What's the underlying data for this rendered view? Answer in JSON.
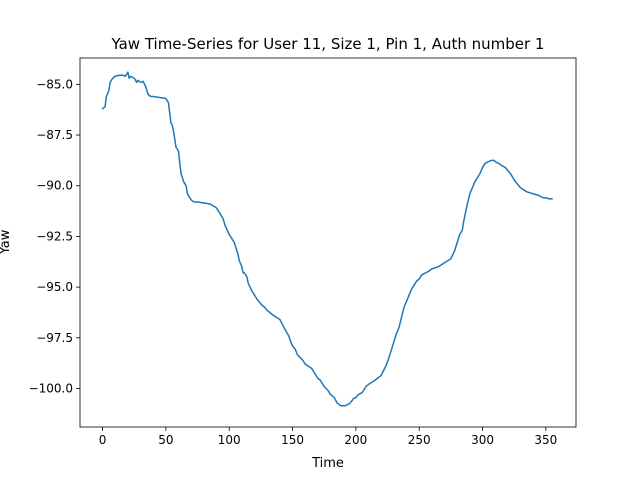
{
  "chart_data": {
    "type": "line",
    "title": "Yaw Time-Series for User 11, Size 1, Pin 1, Auth number 1",
    "xlabel": "Time",
    "ylabel": "Yaw",
    "xlim": [
      -17.8,
      373.8
    ],
    "ylim": [
      -101.9,
      -83.7
    ],
    "xticks": [
      0,
      50,
      100,
      150,
      200,
      250,
      300,
      350
    ],
    "yticks": [
      -85.0,
      -87.5,
      -90.0,
      -92.5,
      -95.0,
      -97.5,
      -100.0
    ],
    "xtick_labels": [
      "0",
      "50",
      "100",
      "150",
      "200",
      "250",
      "300",
      "350"
    ],
    "ytick_labels": [
      "−85.0",
      "−87.5",
      "−90.0",
      "−92.5",
      "−95.0",
      "−97.5",
      "−100.0"
    ],
    "grid": false,
    "series": [
      {
        "color": "#1f77b4",
        "x": [
          0,
          2,
          3,
          5,
          6,
          8,
          10,
          13,
          16,
          18,
          20,
          21,
          22,
          25,
          27,
          28,
          30,
          32,
          34,
          36,
          38,
          40,
          45,
          50,
          52,
          54,
          55,
          56,
          58,
          60,
          61,
          62,
          64,
          65,
          66,
          67,
          68,
          70,
          72,
          75,
          80,
          85,
          90,
          95,
          97,
          100,
          102,
          104,
          106,
          107,
          108,
          110,
          111,
          112,
          114,
          115,
          118,
          120,
          122,
          124,
          126,
          128,
          130,
          135,
          140,
          145,
          146,
          147,
          148,
          150,
          152,
          154,
          158,
          160,
          165,
          170,
          172,
          175,
          178,
          180,
          183,
          185,
          187,
          188,
          189,
          190,
          192,
          193,
          195,
          197,
          198,
          200,
          202,
          205,
          208,
          210,
          215,
          220,
          222,
          224,
          226,
          228,
          230,
          232,
          234,
          236,
          238,
          240,
          242,
          244,
          246,
          248,
          250,
          252,
          255,
          258,
          260,
          265,
          270,
          275,
          278,
          280,
          281,
          282,
          284,
          285,
          286,
          287,
          288,
          290,
          292,
          294,
          296,
          298,
          300,
          302,
          305,
          307,
          309,
          311,
          313,
          315,
          318,
          322,
          324,
          326,
          328,
          330,
          335,
          340,
          343,
          345,
          348,
          350,
          353,
          355
        ],
        "y": [
          -86.2,
          -86.1,
          -85.6,
          -85.3,
          -84.9,
          -84.7,
          -84.6,
          -84.55,
          -84.55,
          -84.6,
          -84.4,
          -84.7,
          -84.6,
          -84.7,
          -84.9,
          -84.8,
          -84.9,
          -84.85,
          -85.1,
          -85.5,
          -85.6,
          -85.6,
          -85.65,
          -85.7,
          -85.9,
          -86.9,
          -87.0,
          -87.3,
          -88.1,
          -88.3,
          -88.9,
          -89.4,
          -89.8,
          -89.9,
          -90.0,
          -90.4,
          -90.5,
          -90.7,
          -90.8,
          -90.8,
          -90.85,
          -90.9,
          -91.1,
          -91.6,
          -92.0,
          -92.4,
          -92.6,
          -92.8,
          -93.2,
          -93.4,
          -93.7,
          -94.0,
          -94.3,
          -94.3,
          -94.5,
          -94.8,
          -95.2,
          -95.4,
          -95.6,
          -95.75,
          -95.9,
          -96.0,
          -96.15,
          -96.4,
          -96.6,
          -97.2,
          -97.3,
          -97.4,
          -97.6,
          -97.9,
          -98.05,
          -98.35,
          -98.6,
          -98.8,
          -99.0,
          -99.5,
          -99.6,
          -99.9,
          -100.1,
          -100.3,
          -100.45,
          -100.7,
          -100.8,
          -100.85,
          -100.85,
          -100.85,
          -100.85,
          -100.8,
          -100.75,
          -100.6,
          -100.5,
          -100.45,
          -100.3,
          -100.2,
          -99.9,
          -99.8,
          -99.6,
          -99.35,
          -99.1,
          -98.85,
          -98.5,
          -98.1,
          -97.7,
          -97.3,
          -97.0,
          -96.5,
          -96.0,
          -95.7,
          -95.4,
          -95.1,
          -94.9,
          -94.7,
          -94.6,
          -94.4,
          -94.3,
          -94.2,
          -94.1,
          -94.0,
          -93.8,
          -93.6,
          -93.2,
          -92.8,
          -92.6,
          -92.4,
          -92.2,
          -91.8,
          -91.5,
          -91.2,
          -90.9,
          -90.4,
          -90.1,
          -89.8,
          -89.6,
          -89.4,
          -89.1,
          -88.9,
          -88.8,
          -88.75,
          -88.75,
          -88.85,
          -88.9,
          -89.0,
          -89.1,
          -89.4,
          -89.6,
          -89.8,
          -89.95,
          -90.1,
          -90.3,
          -90.4,
          -90.45,
          -90.5,
          -90.6,
          -90.6,
          -90.65,
          -90.65
        ]
      }
    ]
  }
}
